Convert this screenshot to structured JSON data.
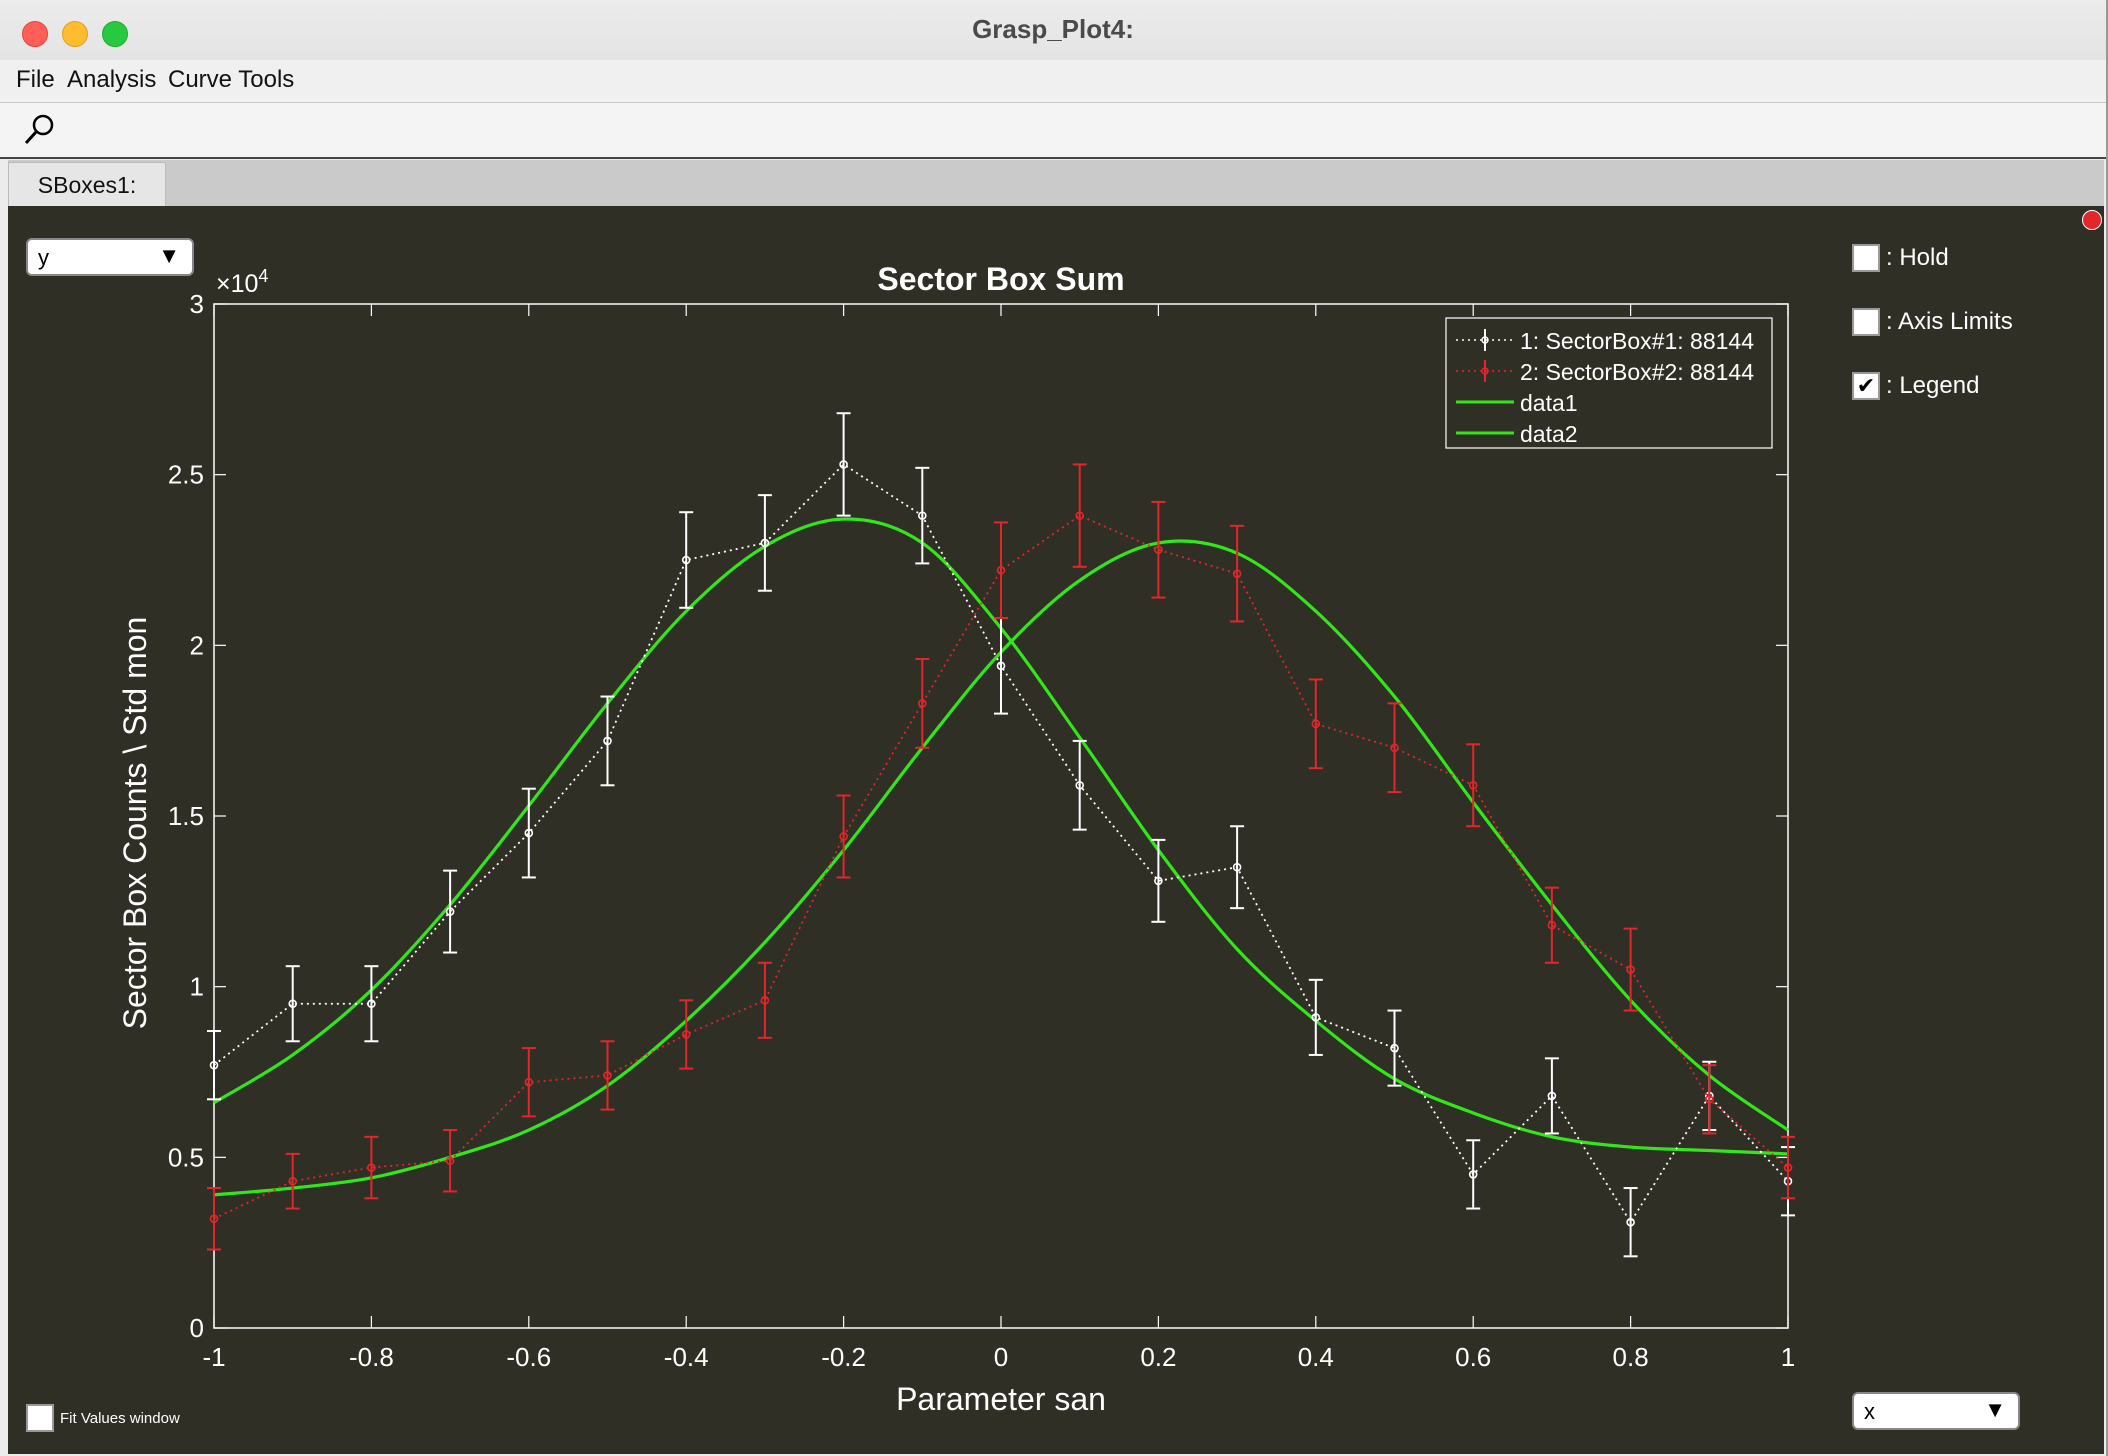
{
  "window": {
    "title": "Grasp_Plot4:"
  },
  "menu": {
    "items": [
      "File",
      "Analysis",
      "Curve Tools"
    ]
  },
  "toolbar": {
    "zoom_icon": "magnifier-icon"
  },
  "tabs": [
    {
      "label": "SBoxes1:"
    }
  ],
  "controls": {
    "y_select": "y",
    "x_select": "x",
    "hold_label": ": Hold",
    "axis_limits_label": ": Axis Limits",
    "legend_label": ": Legend",
    "legend_checked": true,
    "hold_checked": false,
    "axis_limits_checked": false,
    "fit_values_label": "Fit Values window"
  },
  "colors": {
    "panel_bg": "#2f2f26",
    "series1": "#ffffff",
    "series2": "#e3262b",
    "fit": "#33e61a"
  },
  "chart_data": {
    "type": "scatter",
    "title": "Sector Box Sum",
    "xlabel": "Parameter san",
    "ylabel": "Sector  Box  Counts  \\  Std  mon",
    "y_exponent_label": "×10",
    "y_exponent_power": "4",
    "xlim": [
      -1,
      1
    ],
    "ylim": [
      0,
      3
    ],
    "xticks": [
      "-1",
      "-0.8",
      "-0.6",
      "-0.4",
      "-0.2",
      "0",
      "0.2",
      "0.4",
      "0.6",
      "0.8",
      "1"
    ],
    "yticks": [
      "0",
      "0.5",
      "1",
      "1.5",
      "2",
      "2.5",
      "3"
    ],
    "legend_position": "top-right",
    "x": [
      -1,
      -0.9,
      -0.8,
      -0.7,
      -0.6,
      -0.5,
      -0.4,
      -0.3,
      -0.2,
      -0.1,
      0,
      0.1,
      0.2,
      0.3,
      0.4,
      0.5,
      0.6,
      0.7,
      0.8,
      0.9,
      1
    ],
    "series": [
      {
        "name": "1: SectorBox#1: 88144",
        "style": "dotted-errorbar",
        "values": [
          0.77,
          0.95,
          0.95,
          1.22,
          1.45,
          1.72,
          2.25,
          2.3,
          2.53,
          2.38,
          1.94,
          1.59,
          1.31,
          1.35,
          0.91,
          0.82,
          0.45,
          0.68,
          0.31,
          0.68,
          0.43
        ],
        "errors": [
          0.1,
          0.11,
          0.11,
          0.12,
          0.13,
          0.13,
          0.14,
          0.14,
          0.15,
          0.14,
          0.14,
          0.13,
          0.12,
          0.12,
          0.11,
          0.11,
          0.1,
          0.11,
          0.1,
          0.1,
          0.1
        ]
      },
      {
        "name": "2: SectorBox#2: 88144",
        "style": "dotted-errorbar",
        "values": [
          0.32,
          0.43,
          0.47,
          0.49,
          0.72,
          0.74,
          0.86,
          0.96,
          1.44,
          1.83,
          2.22,
          2.38,
          2.28,
          2.21,
          1.77,
          1.7,
          1.59,
          1.18,
          1.05,
          0.67,
          0.47
        ],
        "errors": [
          0.09,
          0.08,
          0.09,
          0.09,
          0.1,
          0.1,
          0.1,
          0.11,
          0.12,
          0.13,
          0.14,
          0.15,
          0.14,
          0.14,
          0.13,
          0.13,
          0.12,
          0.11,
          0.12,
          0.1,
          0.09
        ]
      },
      {
        "name": "data1",
        "style": "line",
        "values": [
          0.66,
          0.8,
          0.99,
          1.24,
          1.53,
          1.83,
          2.1,
          2.29,
          2.37,
          2.3,
          2.05,
          1.73,
          1.4,
          1.11,
          0.9,
          0.73,
          0.63,
          0.56,
          0.53,
          0.52,
          0.51
        ]
      },
      {
        "name": "data2",
        "style": "line",
        "values": [
          0.39,
          0.41,
          0.44,
          0.5,
          0.58,
          0.71,
          0.9,
          1.13,
          1.4,
          1.7,
          1.98,
          2.19,
          2.3,
          2.27,
          2.1,
          1.85,
          1.54,
          1.24,
          0.96,
          0.74,
          0.58
        ]
      }
    ]
  }
}
